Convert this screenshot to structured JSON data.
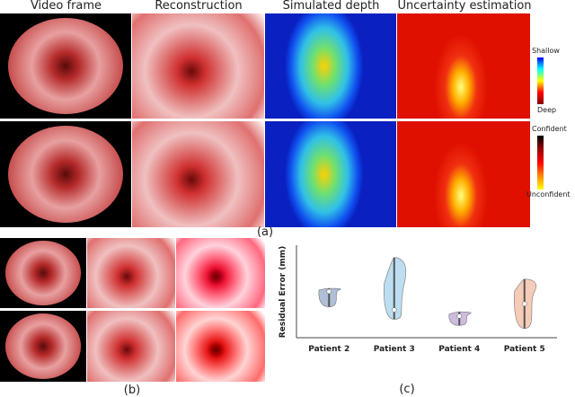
{
  "panel_a": {
    "columns": [
      "Video frame",
      "Reconstruction",
      "Simulated depth",
      "Uncertainty estimation"
    ],
    "colorbars": [
      {
        "top": "Shallow",
        "bottom": "Deep"
      },
      {
        "top": "Confident",
        "bottom": "Unconfident"
      }
    ],
    "label": "(a)"
  },
  "panel_b": {
    "label": "(b)"
  },
  "chart_data": {
    "type": "violin",
    "ylabel": "Residual Error (mm)",
    "categories": [
      "Patient 2",
      "Patient 3",
      "Patient 4",
      "Patient 5"
    ],
    "colors": [
      "#8fa3c4",
      "#9fd0ea",
      "#b9a0d0",
      "#f2b59a"
    ],
    "min": [
      0.7,
      0.5,
      0.4,
      0.35
    ],
    "max": [
      1.0,
      1.5,
      0.62,
      1.15
    ],
    "median": [
      0.95,
      0.65,
      0.55,
      0.75
    ],
    "ylim": [
      0.2,
      1.7
    ],
    "panel_label": "(c)"
  }
}
